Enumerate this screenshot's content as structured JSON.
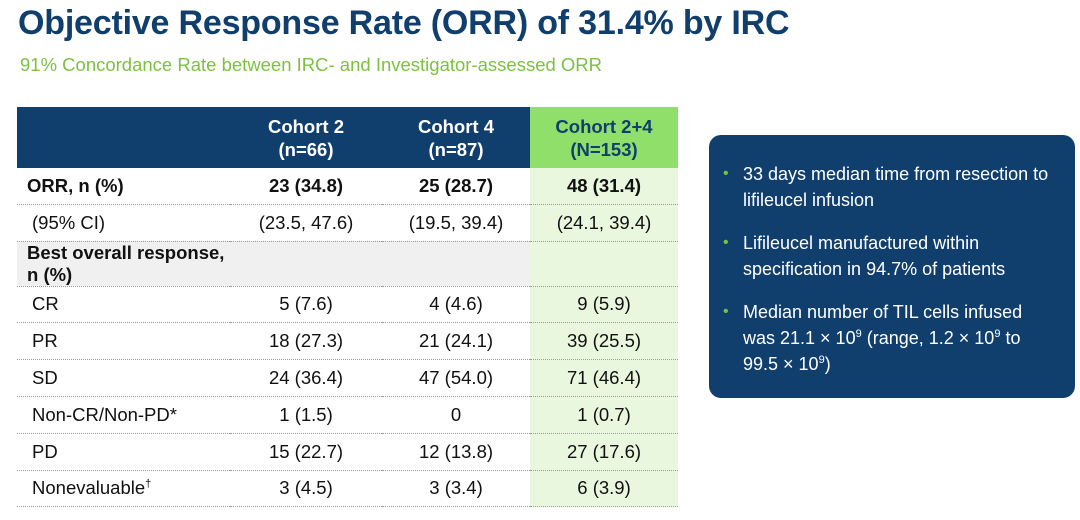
{
  "title": "Objective Response Rate (ORR) of 31.4% by IRC",
  "subtitle": "91% Concordance Rate between IRC- and Investigator-assessed ORR",
  "table": {
    "header": [
      "",
      {
        "line1": "Cohort 2",
        "line2": "(n=66)"
      },
      {
        "line1": "Cohort 4",
        "line2": "(n=87)"
      },
      {
        "line1": "Cohort 2+4",
        "line2": "(N=153)"
      }
    ],
    "rows": [
      {
        "label": "ORR, n (%)",
        "values": [
          "23 (34.8)",
          "25 (28.7)",
          "48 (31.4)"
        ]
      },
      {
        "label": "(95% CI)",
        "values": [
          "(23.5, 47.6)",
          "(19.5, 39.4)",
          "(24.1, 39.4)"
        ]
      },
      {
        "label": "Best overall response, n (%)",
        "values": [
          "",
          "",
          ""
        ]
      },
      {
        "label": "CR",
        "values": [
          "5 (7.6)",
          "4 (4.6)",
          "9 (5.9)"
        ]
      },
      {
        "label": "PR",
        "values": [
          "18 (27.3)",
          "21 (24.1)",
          "39 (25.5)"
        ]
      },
      {
        "label": "SD",
        "values": [
          "24 (36.4)",
          "47 (54.0)",
          "71 (46.4)"
        ]
      },
      {
        "label": "Non-CR/Non-PD*",
        "values": [
          "1 (1.5)",
          "0",
          "1 (0.7)"
        ]
      },
      {
        "label": "PD",
        "values": [
          "15 (22.7)",
          "12 (13.8)",
          "27 (17.6)"
        ]
      },
      {
        "label": "Nonevaluable",
        "label_sup": "†",
        "values": [
          "3 (4.5)",
          "3 (3.4)",
          "6 (3.9)"
        ]
      }
    ]
  },
  "panel": {
    "bullet_glyph": "•",
    "items": [
      {
        "text": "33 days median time from resection to lifileucel infusion"
      },
      {
        "text": "Lifileucel manufactured within specification in 94.7% of patients"
      },
      {
        "text_a": "Median number of TIL cells infused was 21.1 × 10",
        "sup_a": "9",
        "text_b": " (range, 1.2 × 10",
        "sup_b": "9",
        "text_c": " to 99.5 × 10",
        "sup_c": "9",
        "text_d": ")"
      }
    ]
  },
  "colors": {
    "navy": "#103f6e",
    "green": "#7cc142",
    "header_green": "#8fdf6a",
    "combo_col": "#e9f7de"
  }
}
